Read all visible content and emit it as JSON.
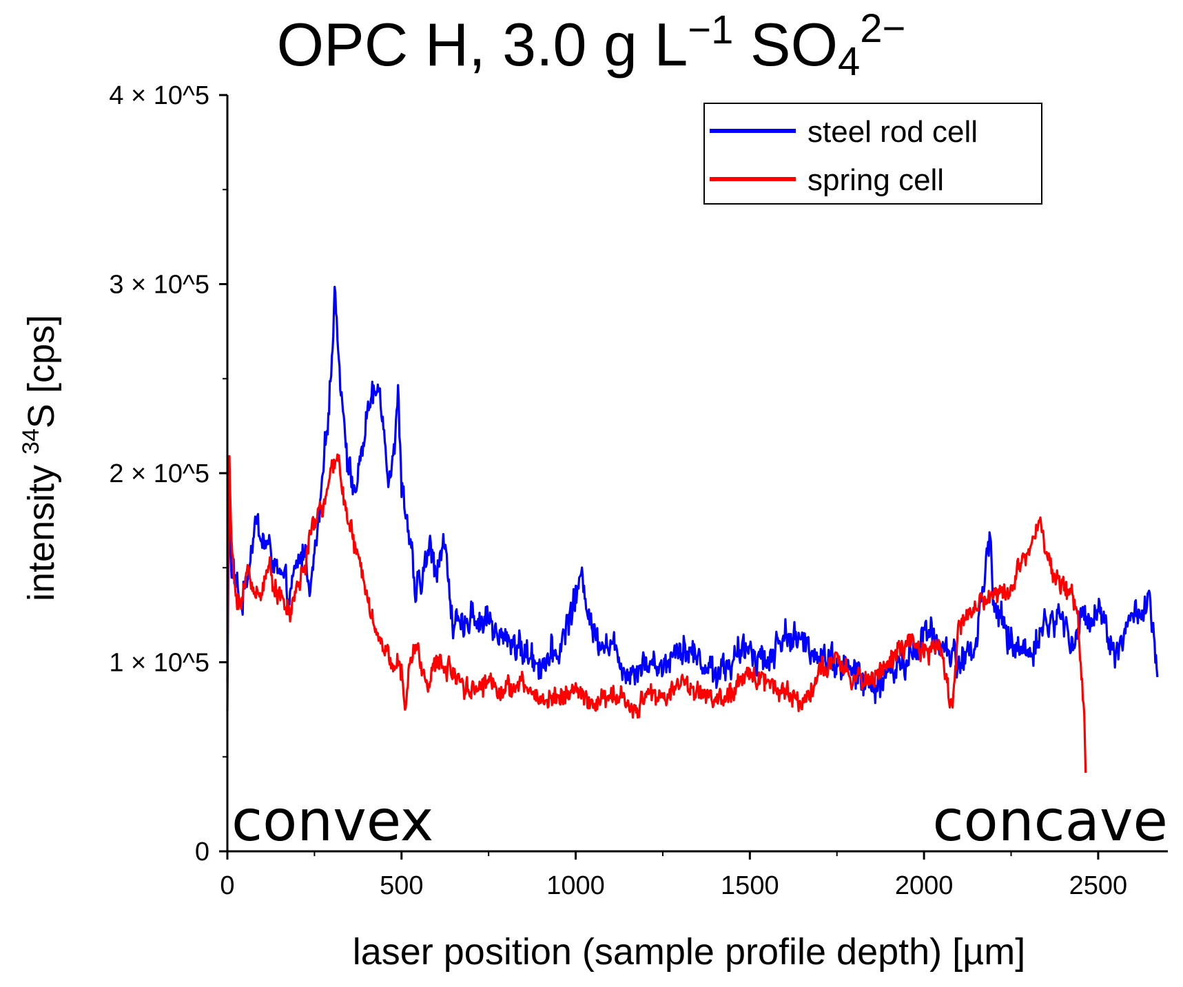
{
  "chart_data": {
    "type": "line",
    "title": {
      "base": "OPC H, 3.0 g L",
      "exp1": "−1",
      "mid": " SO",
      "sub": "4",
      "exp2": "2−"
    },
    "xlabel": "laser position (sample profile depth) [µm]",
    "ylabel": {
      "pre": "intensity ",
      "sup": "34",
      "post": "S [cps]"
    },
    "xlim": [
      0,
      2700
    ],
    "ylim": [
      0,
      400000
    ],
    "x_ticks": [
      0,
      500,
      1000,
      1500,
      2000,
      2500
    ],
    "x_tick_labels": [
      "0",
      "500",
      "1000",
      "1500",
      "2000",
      "2500"
    ],
    "x_minor_ticks": [
      250,
      750,
      1250,
      1750,
      2250
    ],
    "y_ticks": [
      0,
      100000,
      200000,
      300000,
      400000
    ],
    "y_tick_labels": [
      "0",
      "1 × 10^5",
      "2 × 10^5",
      "3 × 10^5",
      "4 × 10^5"
    ],
    "y_minor_ticks": [
      50000,
      150000,
      250000,
      350000
    ],
    "annotations": {
      "left": "convex",
      "right": "concave"
    },
    "legend_position": "top-right",
    "series": [
      {
        "name": "steel rod cell",
        "color": "#0000ff",
        "x_end": 2670,
        "x": [
          0,
          5,
          10,
          20,
          40,
          60,
          80,
          100,
          120,
          150,
          180,
          200,
          220,
          240,
          260,
          280,
          300,
          310,
          320,
          330,
          350,
          370,
          400,
          420,
          440,
          460,
          480,
          490,
          500,
          520,
          540,
          560,
          580,
          600,
          620,
          650,
          680,
          700,
          720,
          750,
          780,
          800,
          850,
          900,
          950,
          1000,
          1020,
          1050,
          1100,
          1150,
          1200,
          1250,
          1300,
          1350,
          1400,
          1450,
          1500,
          1550,
          1600,
          1650,
          1700,
          1750,
          1800,
          1850,
          1900,
          1950,
          2000,
          2050,
          2100,
          2150,
          2190,
          2200,
          2250,
          2300,
          2350,
          2400,
          2420,
          2450,
          2500,
          2550,
          2600,
          2650,
          2670
        ],
        "y": [
          75000,
          200000,
          150000,
          145000,
          130000,
          150000,
          175000,
          165000,
          160000,
          145000,
          135000,
          150000,
          160000,
          140000,
          170000,
          210000,
          260000,
          300000,
          260000,
          240000,
          200000,
          190000,
          230000,
          240000,
          245000,
          200000,
          215000,
          240000,
          195000,
          170000,
          135000,
          145000,
          160000,
          150000,
          165000,
          120000,
          115000,
          130000,
          120000,
          125000,
          110000,
          115000,
          105000,
          100000,
          105000,
          135000,
          145000,
          115000,
          110000,
          95000,
          100000,
          98000,
          110000,
          102000,
          95000,
          100000,
          108000,
          100000,
          115000,
          110000,
          105000,
          100000,
          95000,
          85000,
          95000,
          100000,
          115000,
          110000,
          100000,
          110000,
          170000,
          130000,
          110000,
          105000,
          120000,
          125000,
          110000,
          120000,
          130000,
          105000,
          125000,
          130000,
          90000
        ],
        "noise": 10000
      },
      {
        "name": "spring cell",
        "color": "#ff0000",
        "x_end": 2465,
        "x": [
          0,
          5,
          10,
          20,
          40,
          60,
          80,
          100,
          120,
          150,
          180,
          200,
          220,
          250,
          280,
          300,
          320,
          340,
          360,
          380,
          400,
          420,
          440,
          460,
          480,
          500,
          510,
          520,
          540,
          560,
          580,
          600,
          650,
          700,
          750,
          800,
          850,
          900,
          950,
          1000,
          1050,
          1100,
          1150,
          1170,
          1200,
          1250,
          1300,
          1350,
          1400,
          1450,
          1500,
          1550,
          1600,
          1650,
          1700,
          1750,
          1800,
          1850,
          1900,
          1950,
          2000,
          2050,
          2080,
          2100,
          2150,
          2200,
          2250,
          2300,
          2330,
          2350,
          2400,
          2420,
          2440,
          2450,
          2460,
          2465
        ],
        "y": [
          90000,
          220000,
          170000,
          140000,
          130000,
          150000,
          135000,
          140000,
          150000,
          135000,
          125000,
          140000,
          150000,
          175000,
          185000,
          200000,
          210000,
          180000,
          165000,
          150000,
          140000,
          120000,
          110000,
          105000,
          100000,
          95000,
          70000,
          95000,
          110000,
          95000,
          90000,
          100000,
          95000,
          85000,
          90000,
          85000,
          88000,
          80000,
          82000,
          85000,
          78000,
          82000,
          80000,
          70000,
          85000,
          80000,
          90000,
          85000,
          80000,
          82000,
          95000,
          90000,
          85000,
          78000,
          95000,
          100000,
          90000,
          92000,
          100000,
          110000,
          105000,
          108000,
          75000,
          120000,
          130000,
          135000,
          140000,
          160000,
          180000,
          155000,
          140000,
          135000,
          130000,
          100000,
          70000,
          40000
        ],
        "noise": 7000
      }
    ]
  }
}
